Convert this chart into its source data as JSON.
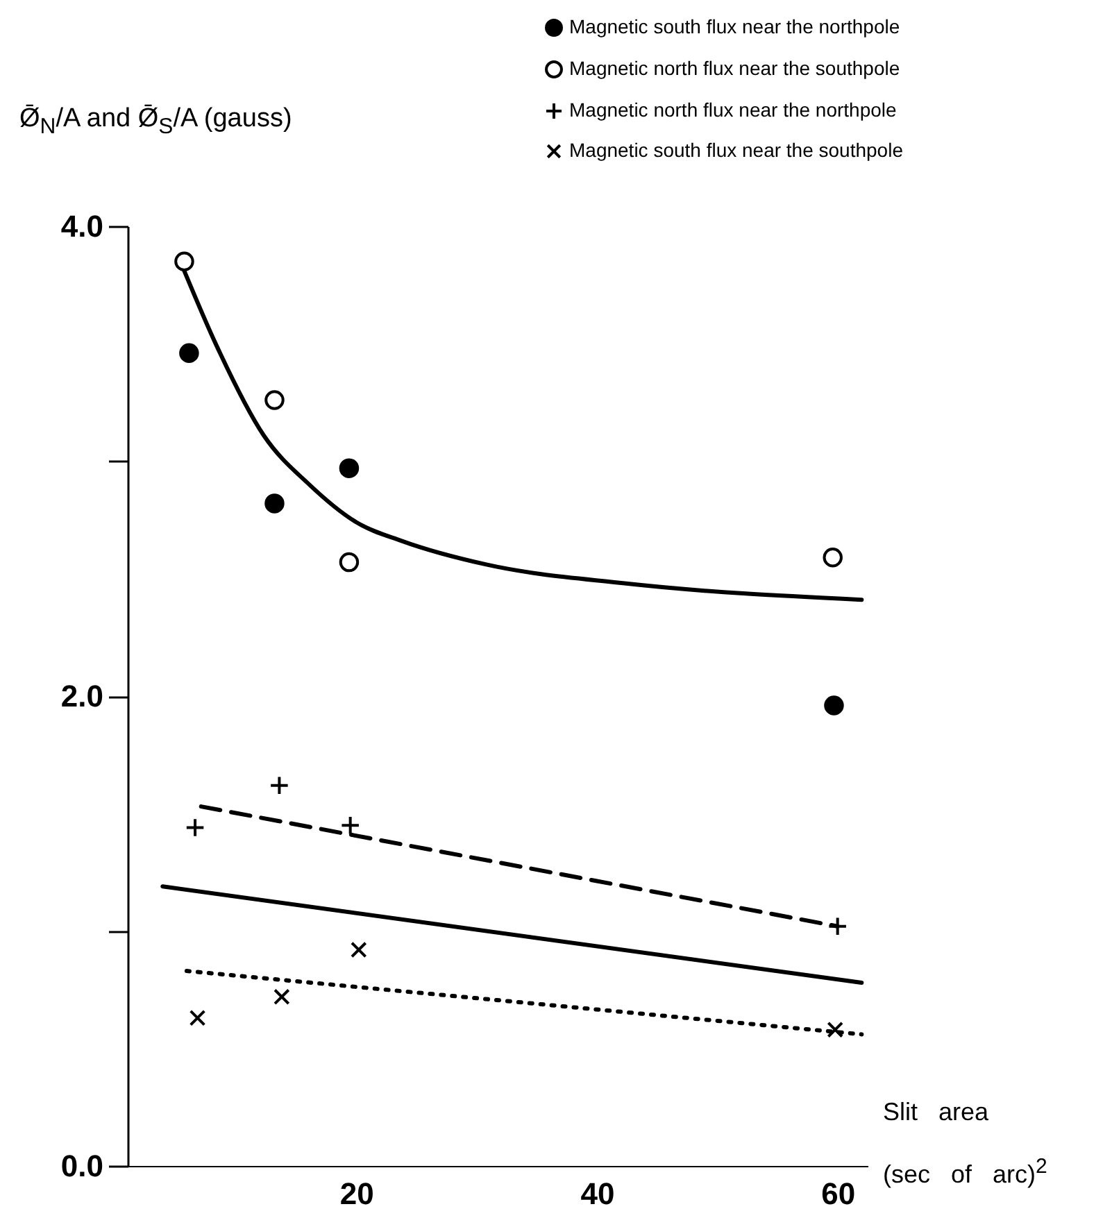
{
  "chart_data": {
    "type": "scatter",
    "ylabel": "Ø̄$_{N}$/A  and  Ø̄$_{S}$/A (gauss)",
    "xlabel": "Slit area (sec of arc)$^{2}$",
    "xlim": [
      1,
      62.5
    ],
    "xticks": [
      20,
      40,
      60
    ],
    "ylim": [
      0,
      4.0
    ],
    "yticks": [
      {
        "value": 0,
        "label": "0.0"
      },
      {
        "value": 1,
        "label": null
      },
      {
        "value": 2,
        "label": "2.0"
      },
      {
        "value": 3,
        "label": null
      },
      {
        "value": 4,
        "label": "4.0"
      }
    ],
    "legend": "top right",
    "series": [
      {
        "name": "Magnetic south flux near the northpole",
        "type": "scatter",
        "marker": "circle",
        "color": "#000000",
        "x": [
          6.1,
          13.2,
          19.4,
          59.7
        ],
        "values": [
          3.46,
          2.82,
          2.97,
          1.96
        ]
      },
      {
        "name": "Magnetic north flux near the southpole",
        "type": "scatter",
        "marker": "circle-open",
        "color": "#000000",
        "x": [
          5.7,
          13.2,
          19.4,
          59.6
        ],
        "values": [
          3.85,
          3.26,
          2.57,
          2.59
        ]
      },
      {
        "name": "Magnetic north flux near the northpole",
        "type": "scatter",
        "marker": "plus",
        "color": "#000000",
        "x": [
          6.6,
          13.6,
          19.5,
          60.0
        ],
        "values": [
          1.44,
          1.62,
          1.45,
          1.02
        ]
      },
      {
        "name": "Magnetic south flux near the southpole",
        "type": "scatter",
        "marker": "cross",
        "color": "#000000",
        "x": [
          6.8,
          13.8,
          20.2,
          59.8
        ],
        "values": [
          0.63,
          0.72,
          0.92,
          0.58
        ]
      },
      {
        "type": "line",
        "line_style": "solid",
        "color": "#000000",
        "x": [
          5.7,
          8.4,
          12.3,
          16.1,
          20,
          23.8,
          30.8,
          42.3,
          62
        ],
        "values": [
          3.81,
          3.49,
          3.11,
          2.9,
          2.74,
          2.66,
          2.56,
          2.48,
          2.41
        ]
      },
      {
        "type": "line",
        "line_style": "dashed",
        "color": "#000000",
        "x": [
          7.1,
          60
        ],
        "values": [
          1.53,
          1.02
        ]
      },
      {
        "type": "line",
        "line_style": "solid",
        "color": "#000000",
        "x": [
          3.9,
          62
        ],
        "values": [
          1.19,
          0.78
        ]
      },
      {
        "type": "line",
        "line_style": "dotted",
        "color": "#000000",
        "x": [
          5.9,
          62
        ],
        "values": [
          0.83,
          0.56
        ]
      }
    ]
  }
}
